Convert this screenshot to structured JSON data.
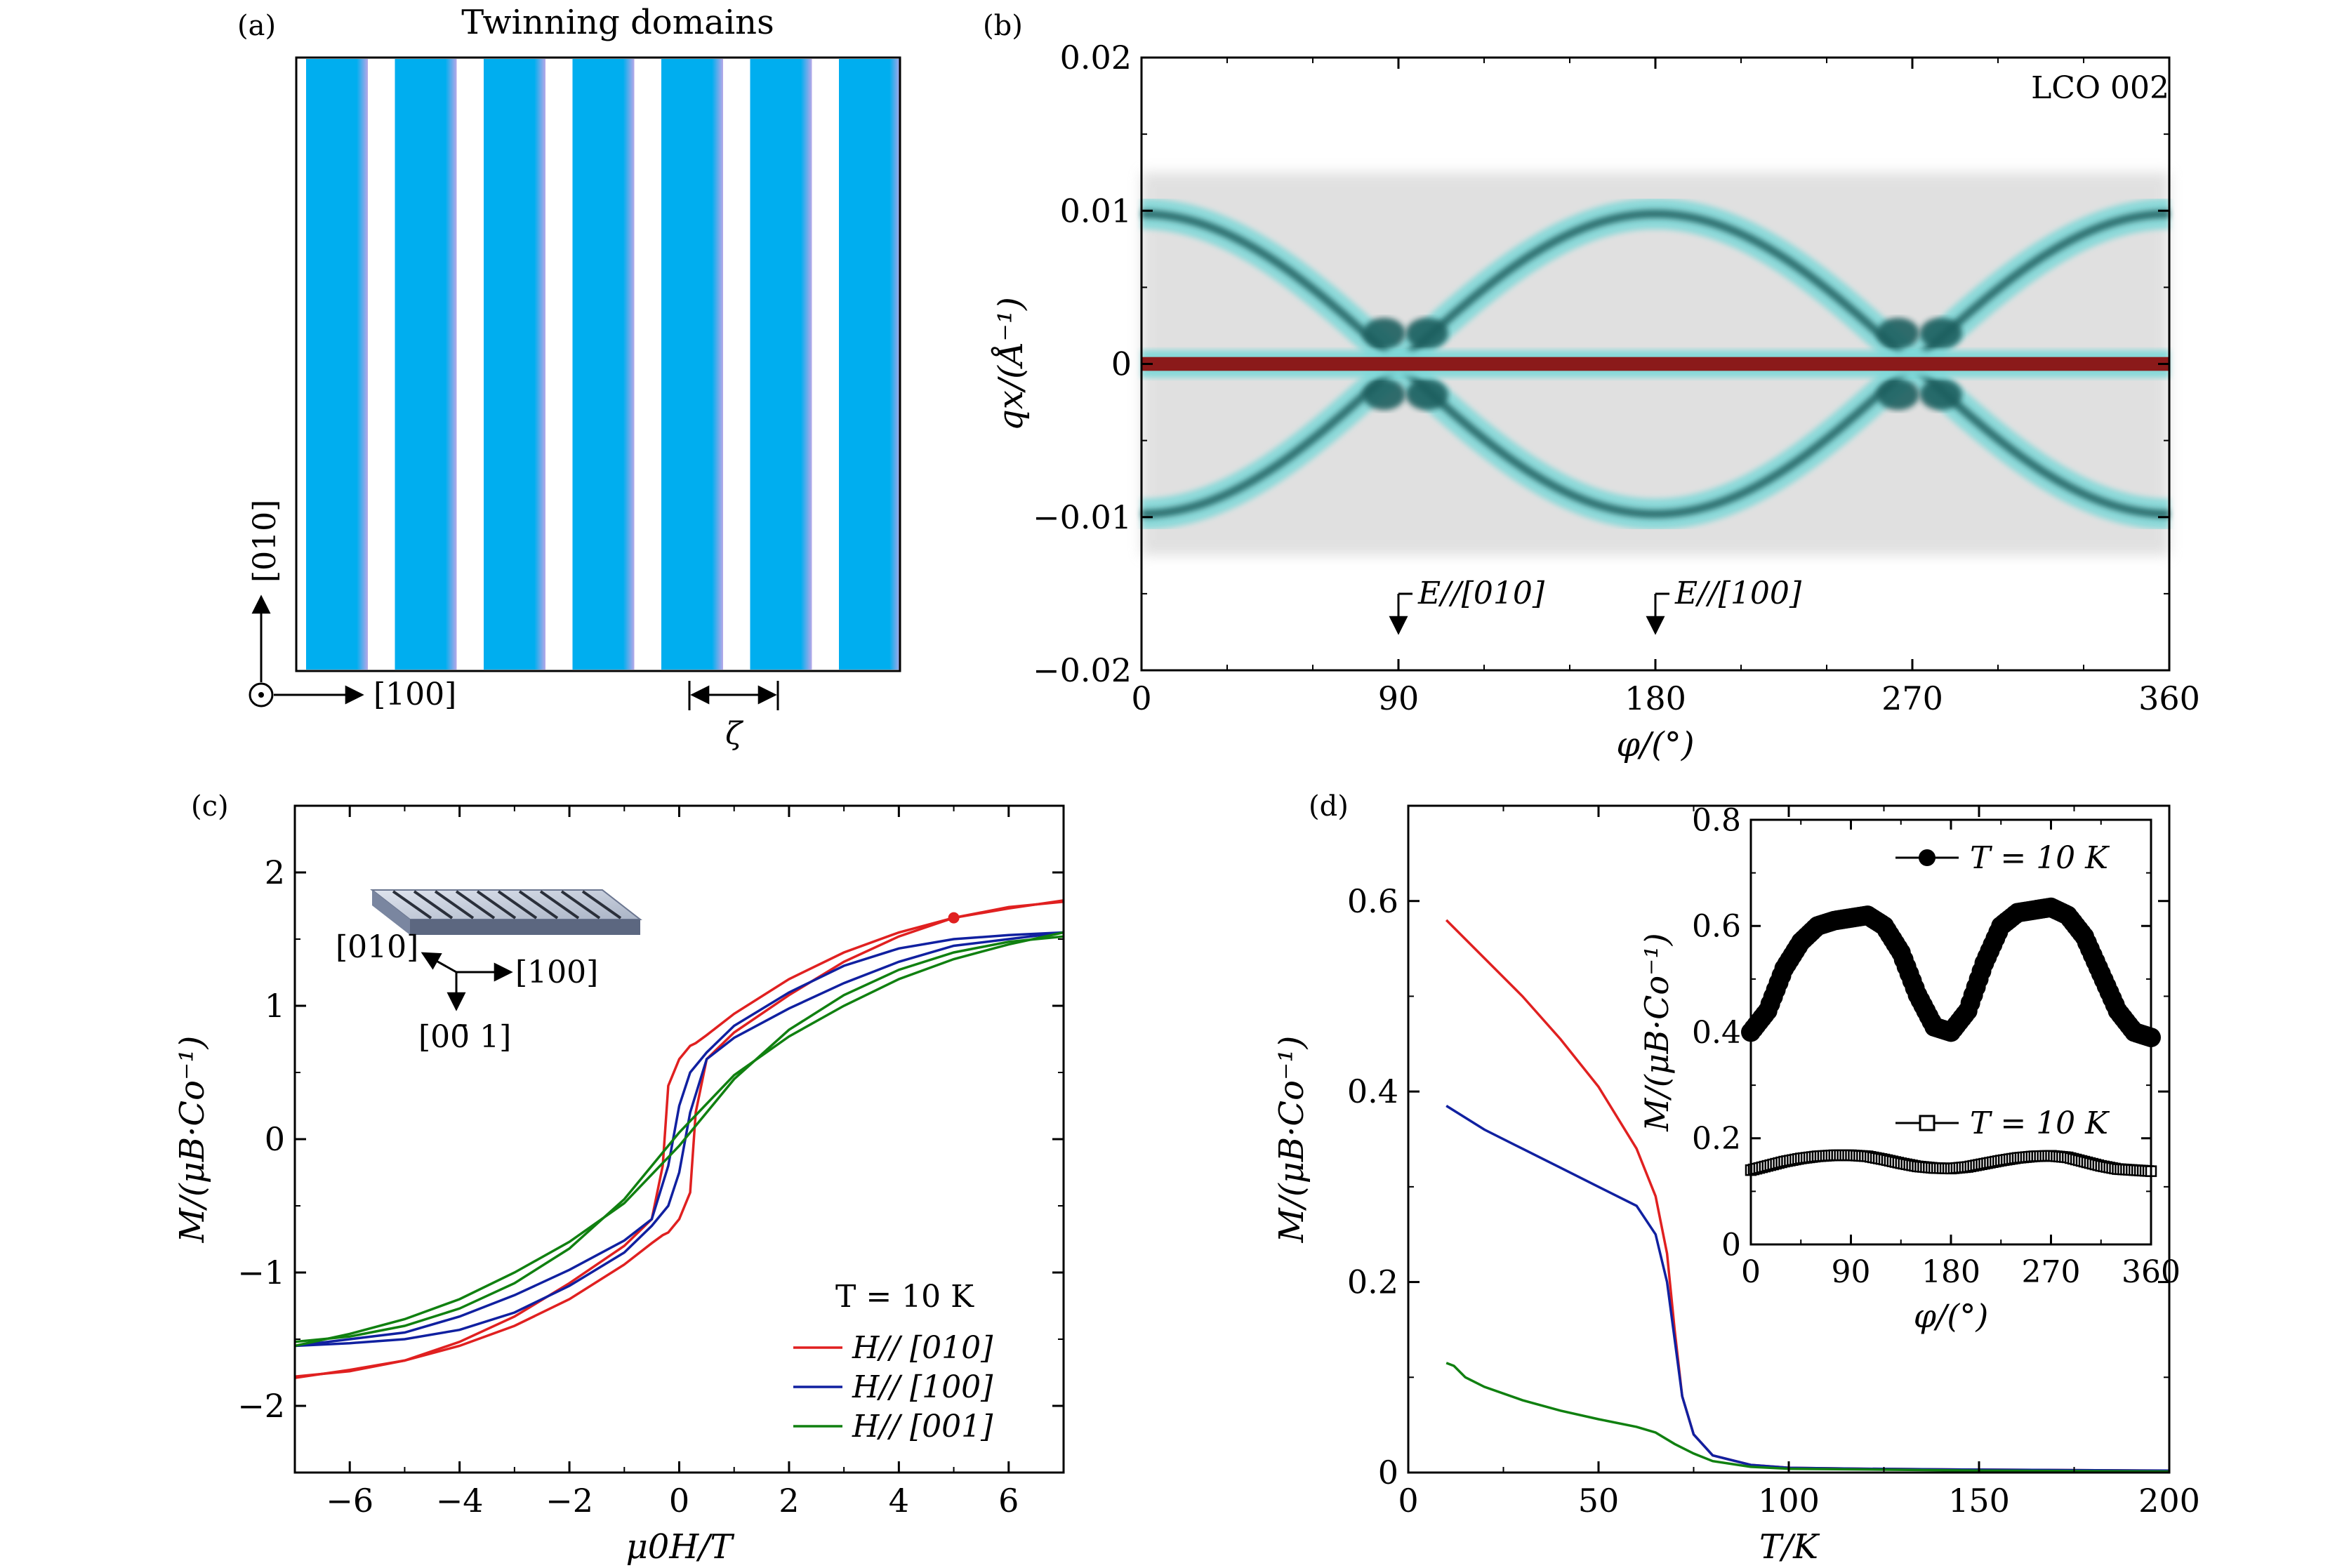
{
  "panels": {
    "a": {
      "label": "(a)",
      "title": "Twinning domains",
      "axis_up": "[010]",
      "axis_right": "[100]",
      "period_symbol": "ζ",
      "stripe_color": "#00AEEF",
      "stripe_count": 7
    },
    "b": {
      "label": "(b)",
      "tag": "LCO   002",
      "arrow_labels": [
        "E//[010]",
        "E//[100]"
      ],
      "arrow_positions_deg": [
        90,
        180
      ]
    },
    "c": {
      "label": "(c)",
      "inset_labels": {
        "x": "[010]",
        "y": "[100]",
        "z": "[00̄ 1]"
      },
      "legend_title": "T = 10 K"
    },
    "d": {
      "label": "(d)"
    }
  },
  "chart_data": [
    {
      "panel": "b",
      "type": "heatmap",
      "xlabel": "φ/(°)",
      "ylabel": "qx/(Å⁻¹)",
      "xlim": [
        0,
        360
      ],
      "ylim": [
        -0.02,
        0.02
      ],
      "xticks": [
        0,
        90,
        180,
        270,
        360
      ],
      "yticks": [
        -0.02,
        -0.01,
        0,
        0.01,
        0.02
      ],
      "xtick_labels": [
        "0",
        "90",
        "180",
        "270",
        "360"
      ],
      "ytick_labels": [
        "−0.02",
        "−0.01",
        "0",
        "0.01",
        "0.02"
      ],
      "colors": {
        "center": "#8B1A1A",
        "peak": "#1F5F5F",
        "band": "#7FD8D8",
        "halo": "#C8C8C8"
      },
      "center_line_qx": 0,
      "satellite_amplitude": 0.0098,
      "satellite_shape": "qx = ±A·|cos(φ)|"
    },
    {
      "panel": "c",
      "type": "line",
      "xlabel": "μ0H/T",
      "ylabel": "M/(μB·Co⁻¹)",
      "xlim": [
        -7,
        7
      ],
      "ylim": [
        -2.5,
        2.5
      ],
      "xticks": [
        -6,
        -4,
        -2,
        0,
        2,
        4,
        6
      ],
      "yticks": [
        -2,
        -1,
        0,
        1,
        2
      ],
      "xtick_labels": [
        "−6",
        "−4",
        "−2",
        "0",
        "2",
        "4",
        "6"
      ],
      "ytick_labels": [
        "−2",
        "−1",
        "0",
        "1",
        "2"
      ],
      "series": [
        {
          "name": "H// [010]",
          "color": "#E02020",
          "x": [
            -7,
            -6,
            -5,
            -4,
            -3,
            -2,
            -1,
            -0.5,
            -0.3,
            -0.2,
            0,
            0.2,
            0.3,
            0.5,
            1,
            2,
            3,
            4,
            5,
            6,
            7
          ],
          "y": [
            -1.78,
            -1.74,
            -1.66,
            -1.52,
            -1.33,
            -1.08,
            -0.8,
            -0.6,
            -0.2,
            0.4,
            0.6,
            0.7,
            0.72,
            0.78,
            0.94,
            1.2,
            1.4,
            1.55,
            1.66,
            1.73,
            1.79
          ]
        },
        {
          "name": "H// [100]",
          "color": "#1020A0",
          "x": [
            -7,
            -6,
            -5,
            -4,
            -3,
            -2,
            -1,
            -0.5,
            -0.2,
            0,
            0.2,
            0.5,
            1,
            2,
            3,
            4,
            5,
            6,
            7
          ],
          "y": [
            -1.55,
            -1.5,
            -1.45,
            -1.33,
            -1.17,
            -0.98,
            -0.76,
            -0.6,
            -0.2,
            0.25,
            0.5,
            0.65,
            0.85,
            1.1,
            1.3,
            1.43,
            1.5,
            1.53,
            1.55
          ]
        },
        {
          "name": "H// [001]",
          "color": "#108010",
          "x": [
            -7,
            -6,
            -5,
            -4,
            -3,
            -2,
            -1,
            0,
            1,
            2,
            3,
            4,
            5,
            6,
            7
          ],
          "y": [
            -1.55,
            -1.46,
            -1.35,
            -1.2,
            -1.0,
            -0.77,
            -0.48,
            -0.05,
            0.45,
            0.82,
            1.08,
            1.27,
            1.4,
            1.48,
            1.52
          ]
        }
      ]
    },
    {
      "panel": "d",
      "type": "line",
      "xlabel": "T/K",
      "ylabel": "M/(μB·Co⁻¹)",
      "xlim": [
        0,
        200
      ],
      "ylim": [
        0,
        0.7
      ],
      "xticks": [
        0,
        50,
        100,
        150,
        200
      ],
      "yticks": [
        0,
        0.2,
        0.4,
        0.6
      ],
      "xtick_labels": [
        "0",
        "50",
        "100",
        "150",
        "200"
      ],
      "ytick_labels": [
        "0",
        "0.2",
        "0.4",
        "0.6"
      ],
      "series": [
        {
          "color": "#E02020",
          "x": [
            10,
            20,
            30,
            40,
            50,
            60,
            65,
            68,
            70,
            72,
            75,
            80,
            90,
            100,
            120,
            150,
            200
          ],
          "y": [
            0.58,
            0.54,
            0.5,
            0.455,
            0.405,
            0.34,
            0.29,
            0.23,
            0.15,
            0.08,
            0.04,
            0.018,
            0.008,
            0.005,
            0.004,
            0.003,
            0.002
          ]
        },
        {
          "color": "#1020A0",
          "x": [
            10,
            20,
            30,
            40,
            50,
            60,
            65,
            68,
            70,
            72,
            75,
            80,
            90,
            100,
            120,
            150,
            200
          ],
          "y": [
            0.385,
            0.36,
            0.34,
            0.32,
            0.3,
            0.28,
            0.25,
            0.2,
            0.14,
            0.08,
            0.04,
            0.018,
            0.008,
            0.005,
            0.004,
            0.003,
            0.002
          ]
        },
        {
          "color": "#108010",
          "x": [
            10,
            12,
            15,
            20,
            30,
            40,
            50,
            60,
            65,
            70,
            75,
            80,
            90,
            100,
            150,
            200
          ],
          "y": [
            0.115,
            0.112,
            0.1,
            0.09,
            0.076,
            0.065,
            0.056,
            0.048,
            0.042,
            0.03,
            0.02,
            0.012,
            0.006,
            0.004,
            0.002,
            0.001
          ]
        }
      ]
    },
    {
      "panel": "d-inset",
      "type": "scatter",
      "xlabel": "φ/(°)",
      "ylabel": "M/(μB·Co⁻¹)",
      "xlim": [
        0,
        360
      ],
      "ylim": [
        0,
        0.8
      ],
      "xticks": [
        0,
        90,
        180,
        270,
        360
      ],
      "yticks": [
        0,
        0.2,
        0.4,
        0.6,
        0.8
      ],
      "xtick_labels": [
        "0",
        "90",
        "180",
        "270",
        "360"
      ],
      "ytick_labels": [
        "0",
        "0.2",
        "0.4",
        "0.6",
        "0.8"
      ],
      "series": [
        {
          "name": "T = 10 K",
          "marker": "filled-circle",
          "color": "#000000",
          "x": [
            0,
            15,
            30,
            45,
            60,
            75,
            90,
            105,
            120,
            135,
            150,
            165,
            180,
            195,
            210,
            225,
            240,
            255,
            270,
            285,
            300,
            315,
            330,
            345,
            360
          ],
          "y": [
            0.4,
            0.44,
            0.52,
            0.57,
            0.6,
            0.61,
            0.615,
            0.62,
            0.6,
            0.55,
            0.47,
            0.41,
            0.4,
            0.44,
            0.53,
            0.6,
            0.625,
            0.63,
            0.635,
            0.62,
            0.58,
            0.51,
            0.44,
            0.4,
            0.39
          ]
        },
        {
          "name": "T = 10 K",
          "marker": "open-square",
          "color": "#000000",
          "x": [
            0,
            15,
            30,
            45,
            60,
            75,
            90,
            105,
            120,
            135,
            150,
            165,
            180,
            195,
            210,
            225,
            240,
            255,
            270,
            285,
            300,
            315,
            330,
            345,
            360
          ],
          "y": [
            0.14,
            0.148,
            0.156,
            0.162,
            0.166,
            0.168,
            0.168,
            0.166,
            0.16,
            0.153,
            0.147,
            0.144,
            0.143,
            0.146,
            0.152,
            0.158,
            0.163,
            0.166,
            0.167,
            0.164,
            0.156,
            0.148,
            0.142,
            0.14,
            0.138
          ]
        }
      ]
    }
  ]
}
